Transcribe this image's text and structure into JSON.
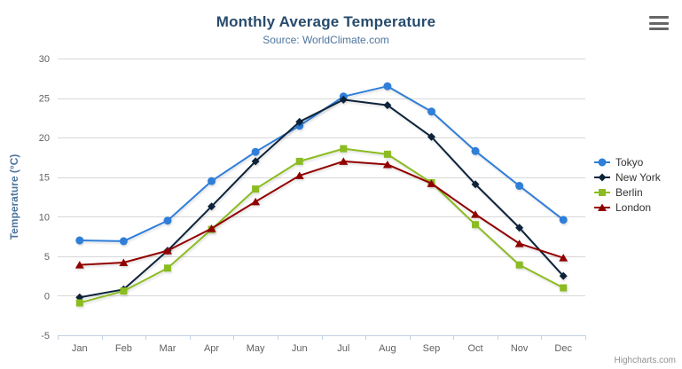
{
  "header": {
    "title": "Monthly Average Temperature",
    "subtitle": "Source: WorldClimate.com"
  },
  "export_menu": {
    "tooltip": "Chart context menu"
  },
  "credits": {
    "label": "Highcharts.com"
  },
  "chart_data": {
    "type": "line",
    "title": "Monthly Average Temperature",
    "subtitle": "Source: WorldClimate.com",
    "categories": [
      "Jan",
      "Feb",
      "Mar",
      "Apr",
      "May",
      "Jun",
      "Jul",
      "Aug",
      "Sep",
      "Oct",
      "Nov",
      "Dec"
    ],
    "series": [
      {
        "name": "Tokyo",
        "color": "#2f7ed8",
        "marker": "circle",
        "values": [
          7.0,
          6.9,
          9.5,
          14.5,
          18.2,
          21.5,
          25.2,
          26.5,
          23.3,
          18.3,
          13.9,
          9.6
        ]
      },
      {
        "name": "New York",
        "color": "#0d233a",
        "marker": "diamond",
        "values": [
          -0.2,
          0.8,
          5.7,
          11.3,
          17.0,
          22.0,
          24.8,
          24.1,
          20.1,
          14.1,
          8.6,
          2.5
        ]
      },
      {
        "name": "Berlin",
        "color": "#8bbc21",
        "marker": "square",
        "values": [
          -0.9,
          0.6,
          3.5,
          8.4,
          13.5,
          17.0,
          18.6,
          17.9,
          14.3,
          9.0,
          3.9,
          1.0
        ]
      },
      {
        "name": "London",
        "color": "#910000",
        "marker": "triangle",
        "values": [
          3.9,
          4.2,
          5.7,
          8.5,
          11.9,
          15.2,
          17.0,
          16.6,
          14.2,
          10.3,
          6.6,
          4.8
        ]
      }
    ],
    "xlabel": "",
    "ylabel": "Temperature (°C)",
    "ylim": [
      -5,
      30
    ],
    "ytick_step": 5,
    "grid": true,
    "legend_position": "right",
    "colors": {
      "grid_line": "#d8d8d8",
      "axis_line": "#c0d0e0",
      "axis_label": "#606060",
      "axis_title": "#4d759e",
      "title": "#274b6d",
      "subtitle": "#4d759e",
      "legend_text": "#333333"
    }
  }
}
